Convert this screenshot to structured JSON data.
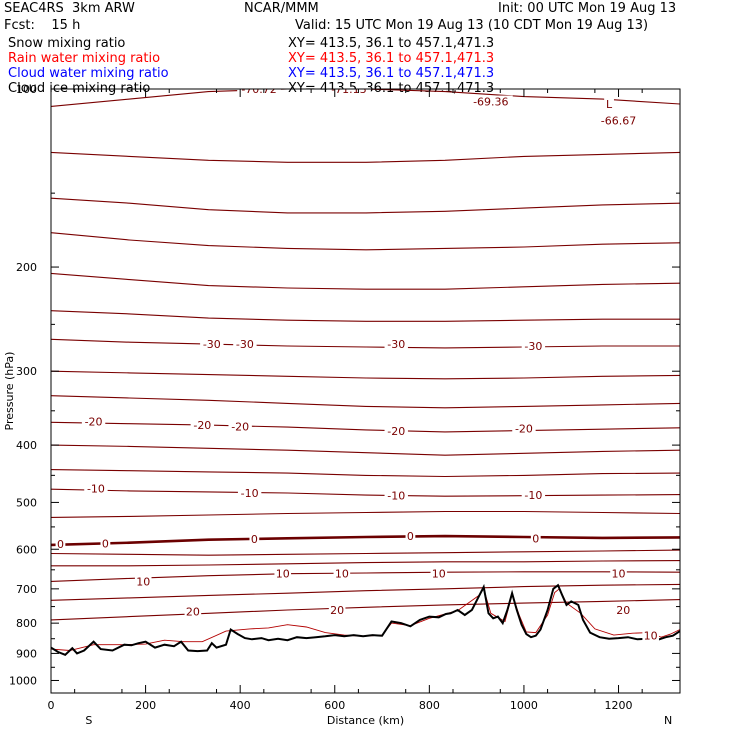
{
  "header": {
    "model": "SEAC4RS  3km ARW",
    "center": "NCAR/MMM",
    "init": "Init: 00 UTC Mon 19 Aug 13",
    "fcst": "Fcst:    15 h",
    "valid": "Valid: 15 UTC Mon 19 Aug 13 (10 CDT Mon 19 Aug 13)"
  },
  "fields": [
    {
      "label": "Snow mixing ratio",
      "xy": "XY= 413.5, 36.1 to 457.1,471.3",
      "color": "#000000"
    },
    {
      "label": "Rain water mixing ratio",
      "xy": "XY= 413.5, 36.1 to 457.1,471.3",
      "color": "#ff0000"
    },
    {
      "label": "Cloud water mixing ratio",
      "xy": "XY= 413.5, 36.1 to 457.1,471.3",
      "color": "#0000ff"
    },
    {
      "label": "Cloud ice mixing ratio",
      "xy": "XY= 413.5, 36.1 to 457.1,471.3",
      "color": "#000000"
    }
  ],
  "chart_data": {
    "type": "line",
    "xlabel": "Distance (km)",
    "ylabel": "Pressure (hPa)",
    "xlim": [
      0,
      1330
    ],
    "ylim": [
      1050,
      100
    ],
    "y_scale": "log",
    "xticks": [
      0,
      200,
      400,
      600,
      800,
      1000,
      1200
    ],
    "yticks": [
      100,
      200,
      300,
      400,
      500,
      600,
      700,
      800,
      900,
      1000
    ],
    "x_end_labels": {
      "left": "S",
      "right": "N"
    },
    "colors": {
      "isotherm": "#7a0000",
      "freezing": "#6b0000",
      "terrain": "#000000",
      "surface_isotherm": "#b30000"
    },
    "isotherm_labels": [
      {
        "text": "-70.72",
        "x": 440,
        "p": 100
      },
      {
        "text": "-71.13",
        "x": 630,
        "p": 100
      },
      {
        "text": "-69.36",
        "x": 930,
        "p": 105
      },
      {
        "text": "L",
        "x": 1180,
        "p": 106
      },
      {
        "text": "-66.67",
        "x": 1200,
        "p": 113
      },
      {
        "text": "-30",
        "x": 340,
        "p": 270
      },
      {
        "text": "-30",
        "x": 410,
        "p": 270
      },
      {
        "text": "-30",
        "x": 730,
        "p": 270
      },
      {
        "text": "-30",
        "x": 1020,
        "p": 272
      },
      {
        "text": "-20",
        "x": 90,
        "p": 365
      },
      {
        "text": "-20",
        "x": 320,
        "p": 370
      },
      {
        "text": "-20",
        "x": 400,
        "p": 372
      },
      {
        "text": "-20",
        "x": 730,
        "p": 379
      },
      {
        "text": "-20",
        "x": 1000,
        "p": 375
      },
      {
        "text": "-10",
        "x": 95,
        "p": 474
      },
      {
        "text": "-10",
        "x": 420,
        "p": 482
      },
      {
        "text": "-10",
        "x": 730,
        "p": 487
      },
      {
        "text": "-10",
        "x": 1020,
        "p": 486
      },
      {
        "text": "0",
        "x": 20,
        "p": 588
      },
      {
        "text": "0",
        "x": 115,
        "p": 587
      },
      {
        "text": "0",
        "x": 430,
        "p": 576
      },
      {
        "text": "0",
        "x": 760,
        "p": 570
      },
      {
        "text": "0",
        "x": 1025,
        "p": 575
      },
      {
        "text": "10",
        "x": 195,
        "p": 680
      },
      {
        "text": "10",
        "x": 490,
        "p": 660
      },
      {
        "text": "10",
        "x": 615,
        "p": 660
      },
      {
        "text": "10",
        "x": 820,
        "p": 660
      },
      {
        "text": "10",
        "x": 1200,
        "p": 660
      },
      {
        "text": "20",
        "x": 300,
        "p": 765
      },
      {
        "text": "20",
        "x": 605,
        "p": 760
      },
      {
        "text": "20",
        "x": 1210,
        "p": 760
      },
      {
        "text": "10",
        "x": 1268,
        "p": 840
      }
    ],
    "isotherms_upper": [
      {
        "level": -70,
        "p": [
          107,
          104,
          101,
          100,
          100,
          101,
          103,
          104,
          106
        ]
      },
      {
        "level": -60,
        "p": [
          128,
          130,
          132,
          133,
          133,
          132,
          130,
          129,
          128
        ]
      },
      {
        "level": -50,
        "p": [
          153,
          156,
          160,
          162,
          162,
          161,
          159,
          157,
          156
        ]
      },
      {
        "level": -45,
        "p": [
          175,
          180,
          184,
          186,
          187,
          186,
          185,
          183,
          182
        ]
      },
      {
        "level": -40,
        "p": [
          205,
          210,
          215,
          217,
          218,
          218,
          216,
          214,
          213
        ]
      },
      {
        "level": -35,
        "p": [
          237,
          240,
          244,
          246,
          247,
          247,
          246,
          245,
          245
        ]
      },
      {
        "level": -30,
        "p": [
          265,
          268,
          270,
          272,
          273,
          274,
          273,
          272,
          272
        ]
      },
      {
        "level": -25,
        "p": [
          300,
          302,
          304,
          306,
          308,
          309,
          308,
          306,
          305
        ]
      },
      {
        "level": -22,
        "p": [
          330,
          333,
          336,
          340,
          344,
          346,
          344,
          342,
          340
        ]
      },
      {
        "level": -20,
        "p": [
          366,
          368,
          370,
          373,
          377,
          380,
          378,
          376,
          374
        ]
      },
      {
        "level": -15,
        "p": [
          400,
          402,
          405,
          408,
          412,
          416,
          413,
          410,
          408
        ]
      },
      {
        "level": -12,
        "p": [
          440,
          442,
          444,
          446,
          450,
          452,
          450,
          447,
          446
        ]
      },
      {
        "level": -10,
        "p": [
          475,
          478,
          480,
          482,
          486,
          488,
          487,
          486,
          485
        ]
      },
      {
        "level": -5,
        "p": [
          530,
          528,
          525,
          522,
          520,
          518,
          518,
          520,
          522
        ]
      },
      {
        "level": 0,
        "p": [
          590,
          585,
          578,
          575,
          572,
          570,
          572,
          574,
          573
        ]
      },
      {
        "level": 2,
        "p": [
          610,
          612,
          614,
          612,
          610,
          608,
          606,
          604,
          602
        ]
      },
      {
        "level": 5,
        "p": [
          640,
          640,
          638,
          635,
          632,
          630,
          630,
          628,
          627
        ]
      },
      {
        "level": 10,
        "p": [
          680,
          672,
          665,
          660,
          658,
          656,
          655,
          655,
          656
        ]
      },
      {
        "level": 15,
        "p": [
          732,
          725,
          718,
          712,
          705,
          700,
          694,
          690,
          688
        ]
      },
      {
        "level": 18,
        "p": [
          790,
          780,
          770,
          760,
          752,
          745,
          740,
          735,
          730
        ]
      }
    ],
    "isotherm_x": [
      0,
      166,
      333,
      500,
      666,
      833,
      1000,
      1166,
      1330
    ],
    "terrain_p": [
      [
        0,
        880
      ],
      [
        15,
        895
      ],
      [
        30,
        905
      ],
      [
        45,
        882
      ],
      [
        55,
        900
      ],
      [
        70,
        890
      ],
      [
        90,
        860
      ],
      [
        105,
        885
      ],
      [
        130,
        890
      ],
      [
        155,
        870
      ],
      [
        170,
        872
      ],
      [
        185,
        865
      ],
      [
        200,
        860
      ],
      [
        220,
        880
      ],
      [
        240,
        870
      ],
      [
        260,
        875
      ],
      [
        275,
        860
      ],
      [
        290,
        890
      ],
      [
        310,
        892
      ],
      [
        330,
        890
      ],
      [
        340,
        865
      ],
      [
        350,
        880
      ],
      [
        370,
        870
      ],
      [
        380,
        820
      ],
      [
        395,
        835
      ],
      [
        410,
        848
      ],
      [
        425,
        852
      ],
      [
        445,
        848
      ],
      [
        460,
        855
      ],
      [
        480,
        850
      ],
      [
        500,
        855
      ],
      [
        520,
        845
      ],
      [
        540,
        848
      ],
      [
        560,
        845
      ],
      [
        580,
        842
      ],
      [
        600,
        838
      ],
      [
        620,
        842
      ],
      [
        640,
        838
      ],
      [
        660,
        842
      ],
      [
        680,
        838
      ],
      [
        700,
        840
      ],
      [
        720,
        795
      ],
      [
        740,
        800
      ],
      [
        760,
        810
      ],
      [
        780,
        790
      ],
      [
        800,
        780
      ],
      [
        820,
        782
      ],
      [
        835,
        772
      ],
      [
        845,
        770
      ],
      [
        860,
        760
      ],
      [
        875,
        775
      ],
      [
        890,
        760
      ],
      [
        905,
        720
      ],
      [
        915,
        695
      ],
      [
        925,
        770
      ],
      [
        935,
        785
      ],
      [
        945,
        780
      ],
      [
        955,
        800
      ],
      [
        965,
        760
      ],
      [
        975,
        712
      ],
      [
        985,
        760
      ],
      [
        995,
        805
      ],
      [
        1005,
        835
      ],
      [
        1015,
        845
      ],
      [
        1025,
        840
      ],
      [
        1035,
        820
      ],
      [
        1050,
        760
      ],
      [
        1062,
        700
      ],
      [
        1072,
        690
      ],
      [
        1080,
        715
      ],
      [
        1090,
        745
      ],
      [
        1100,
        735
      ],
      [
        1115,
        745
      ],
      [
        1125,
        790
      ],
      [
        1140,
        830
      ],
      [
        1160,
        845
      ],
      [
        1180,
        850
      ],
      [
        1200,
        848
      ],
      [
        1220,
        845
      ],
      [
        1240,
        852
      ],
      [
        1260,
        850
      ],
      [
        1280,
        855
      ],
      [
        1300,
        845
      ],
      [
        1315,
        840
      ],
      [
        1330,
        825
      ]
    ],
    "surface_isotherm_p": [
      [
        0,
        885
      ],
      [
        40,
        890
      ],
      [
        90,
        870
      ],
      [
        150,
        870
      ],
      [
        200,
        868
      ],
      [
        240,
        855
      ],
      [
        280,
        860
      ],
      [
        320,
        860
      ],
      [
        370,
        825
      ],
      [
        420,
        818
      ],
      [
        460,
        815
      ],
      [
        500,
        805
      ],
      [
        540,
        812
      ],
      [
        580,
        830
      ],
      [
        620,
        838
      ],
      [
        660,
        842
      ],
      [
        700,
        838
      ],
      [
        720,
        800
      ],
      [
        760,
        808
      ],
      [
        800,
        785
      ],
      [
        860,
        762
      ],
      [
        905,
        718
      ],
      [
        915,
        700
      ],
      [
        930,
        770
      ],
      [
        960,
        795
      ],
      [
        975,
        715
      ],
      [
        990,
        775
      ],
      [
        1005,
        828
      ],
      [
        1025,
        830
      ],
      [
        1050,
        775
      ],
      [
        1065,
        710
      ],
      [
        1075,
        700
      ],
      [
        1090,
        740
      ],
      [
        1120,
        770
      ],
      [
        1150,
        818
      ],
      [
        1190,
        838
      ],
      [
        1230,
        832
      ],
      [
        1265,
        830
      ],
      [
        1290,
        845
      ],
      [
        1310,
        835
      ],
      [
        1330,
        820
      ]
    ]
  }
}
